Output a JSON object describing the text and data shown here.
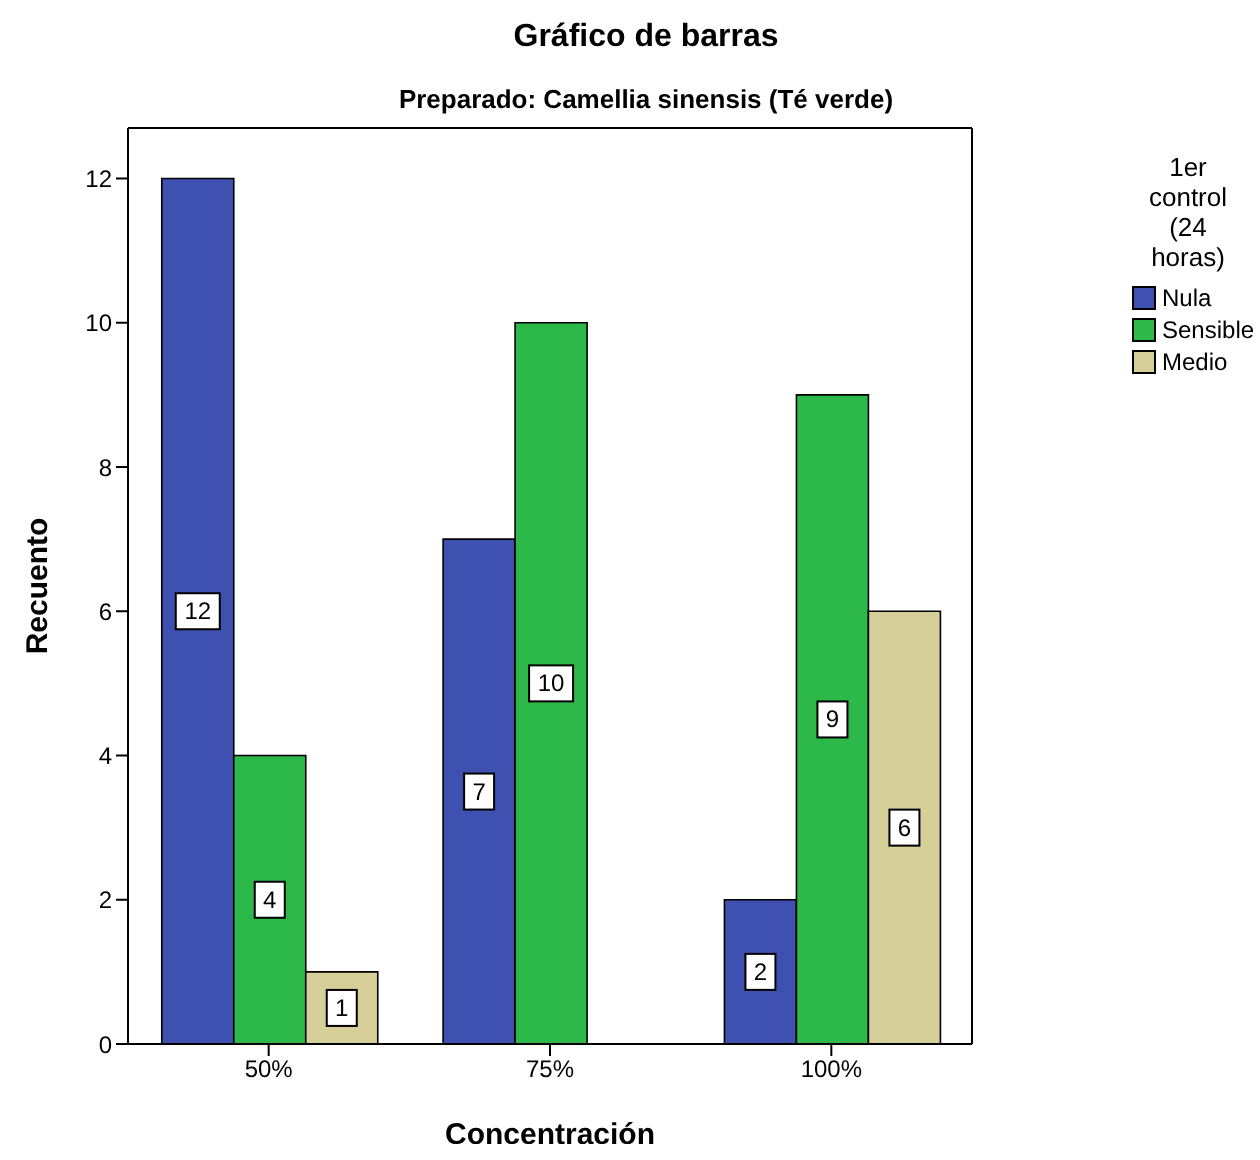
{
  "chart_data": {
    "type": "bar",
    "title": "Gráfico de barras",
    "subtitle": "Preparado: Camellia sinensis (Té verde)",
    "xlabel": "Concentración",
    "ylabel": "Recuento",
    "legend_title": "1er control (24 horas)",
    "categories": [
      "50%",
      "75%",
      "100%"
    ],
    "series": [
      {
        "name": "Nula",
        "color": "#3f51b0",
        "values": [
          12,
          7,
          2
        ]
      },
      {
        "name": "Sensible",
        "color": "#2db84a",
        "values": [
          4,
          10,
          9
        ]
      },
      {
        "name": "Medio",
        "color": "#d6cf9a",
        "values": [
          1,
          null,
          6
        ]
      }
    ],
    "ylim": [
      0,
      12.7
    ],
    "yticks": [
      0,
      2,
      4,
      6,
      8,
      10,
      12
    ],
    "grid": false,
    "legend": "top right",
    "data_labels": true
  }
}
